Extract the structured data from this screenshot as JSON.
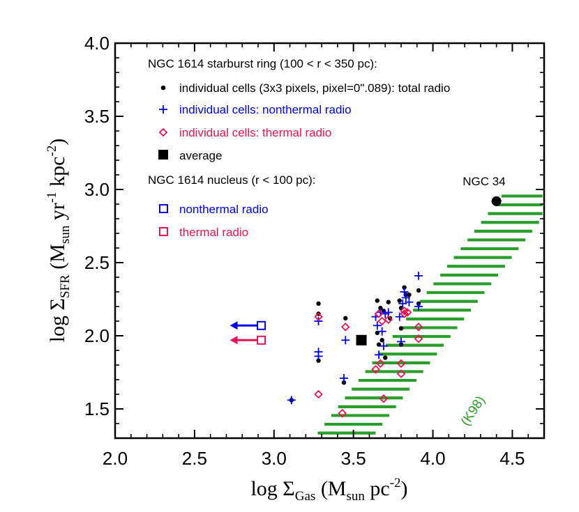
{
  "chart_data": {
    "type": "scatter",
    "title": "",
    "xlabel": {
      "prefix": "log Σ",
      "sub": "Gas",
      "rest": " (M",
      "sub2": "sun",
      "rest2": " pc",
      "sup": "-2",
      "end": ")"
    },
    "ylabel": {
      "prefix": "log Σ",
      "sub": "SFR",
      "rest": " (M",
      "sub2": "sun",
      "rest2": " yr",
      "sup": "-1",
      "rest3": " kpc",
      "sup2": "-2",
      "end": ")"
    },
    "xlim": [
      2.0,
      4.7
    ],
    "ylim": [
      1.3,
      4.0
    ],
    "xticks": [
      "2.0",
      "2.5",
      "3.0",
      "3.5",
      "4.0",
      "4.5"
    ],
    "yticks": [
      "1.5",
      "2.0",
      "2.5",
      "3.0",
      "3.5",
      "4.0"
    ],
    "grid": false,
    "colors": {
      "total": "#000000",
      "nonthermal": "#0000ee",
      "thermal": "#e8134f",
      "k98": "#2a9e2a"
    },
    "legend": {
      "header1": "NGC 1614 starburst ring (100 < r < 350 pc):",
      "total": "individual cells (3x3 pixels, pixel=0\".089): total radio",
      "nonthermal": "individual cells: nonthermal radio",
      "thermal": "individual cells: thermal radio",
      "average": "average",
      "header2": "NGC 1614 nucleus (r < 100 pc):",
      "nuc_nonthermal": "nonthermal radio",
      "nuc_thermal": "thermal radio"
    },
    "series": [
      {
        "name": "individual cells (3x3 pixels, pixel=0\".089): total radio",
        "marker": "dot",
        "points": [
          [
            3.11,
            1.56
          ],
          [
            3.28,
            2.22
          ],
          [
            3.28,
            2.15
          ],
          [
            3.28,
            1.83
          ],
          [
            3.44,
            1.68
          ],
          [
            3.45,
            2.12
          ],
          [
            3.65,
            2.24
          ],
          [
            3.65,
            2.02
          ],
          [
            3.66,
            1.94
          ],
          [
            3.67,
            2.19
          ],
          [
            3.68,
            1.97
          ],
          [
            3.69,
            2.17
          ],
          [
            3.7,
            1.85
          ],
          [
            3.72,
            2.23
          ],
          [
            3.73,
            2.12
          ],
          [
            3.79,
            2.24
          ],
          [
            3.8,
            2.19
          ],
          [
            3.8,
            2.05
          ],
          [
            3.8,
            1.94
          ],
          [
            3.82,
            2.33
          ],
          [
            3.83,
            2.28
          ],
          [
            3.85,
            2.28
          ],
          [
            3.91,
            2.31
          ],
          [
            3.91,
            2.22
          ]
        ]
      },
      {
        "name": "individual cells: nonthermal radio",
        "marker": "plus",
        "points": [
          [
            3.11,
            1.56
          ],
          [
            3.28,
            2.1
          ],
          [
            3.28,
            1.89
          ],
          [
            3.28,
            1.86
          ],
          [
            3.44,
            1.71
          ],
          [
            3.45,
            1.97
          ],
          [
            3.64,
            2.13
          ],
          [
            3.65,
            2.07
          ],
          [
            3.66,
            1.87
          ],
          [
            3.67,
            2.16
          ],
          [
            3.68,
            2.03
          ],
          [
            3.69,
            1.93
          ],
          [
            3.7,
            2.15
          ],
          [
            3.72,
            2.16
          ],
          [
            3.79,
            2.13
          ],
          [
            3.8,
            1.96
          ],
          [
            3.81,
            2.22
          ],
          [
            3.82,
            2.3
          ],
          [
            3.83,
            2.26
          ],
          [
            3.85,
            2.23
          ],
          [
            3.91,
            2.41
          ],
          [
            3.91,
            2.2
          ]
        ]
      },
      {
        "name": "individual cells: thermal radio",
        "marker": "diamond",
        "points": [
          [
            3.28,
            1.6
          ],
          [
            3.28,
            2.13
          ],
          [
            3.43,
            1.47
          ],
          [
            3.45,
            2.06
          ],
          [
            3.64,
            1.77
          ],
          [
            3.66,
            2.15
          ],
          [
            3.67,
            1.81
          ],
          [
            3.68,
            2.1
          ],
          [
            3.69,
            1.57
          ],
          [
            3.72,
            2.11
          ],
          [
            3.8,
            1.81
          ],
          [
            3.8,
            1.74
          ],
          [
            3.82,
            2.15
          ],
          [
            3.82,
            2.17
          ],
          [
            3.84,
            2.16
          ],
          [
            3.91,
            2.06
          ],
          [
            3.91,
            1.98
          ]
        ]
      },
      {
        "name": "average",
        "marker": "square",
        "points": [
          [
            3.55,
            1.97
          ]
        ]
      },
      {
        "name": "nonthermal radio",
        "marker": "open-square-upper-limit",
        "points": [
          [
            2.92,
            2.07
          ]
        ]
      },
      {
        "name": "thermal radio",
        "marker": "open-square-upper-limit",
        "points": [
          [
            2.92,
            1.97
          ]
        ]
      },
      {
        "name": "NGC 34",
        "marker": "big-dot",
        "points": [
          [
            4.4,
            2.92
          ]
        ]
      }
    ],
    "annotations": {
      "ngc34": "NGC 34",
      "k98": "(K98)"
    },
    "k98_band": {
      "slope": 1.4,
      "intercept_low": -3.76,
      "intercept_high": -3.25,
      "y_min": 1.335,
      "y_max": 2.96,
      "step": 0.06
    }
  }
}
